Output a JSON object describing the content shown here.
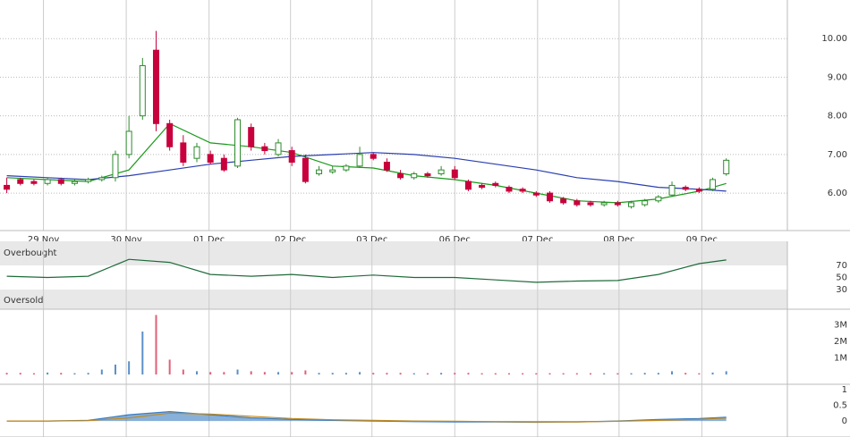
{
  "chart_data": [
    {
      "type": "candlestick",
      "xlim": [
        -0.5,
        57.5
      ],
      "xticks": [
        {
          "value": 2.7,
          "label": "29 Nov"
        },
        {
          "value": 8.8,
          "label": "30 Nov"
        },
        {
          "value": 14.9,
          "label": "01 Dec"
        },
        {
          "value": 20.9,
          "label": "02 Dec"
        },
        {
          "value": 26.9,
          "label": "03 Dec"
        },
        {
          "value": 33,
          "label": "06 Dec"
        },
        {
          "value": 39.1,
          "label": "07 Dec"
        },
        {
          "value": 45.1,
          "label": "08 Dec"
        },
        {
          "value": 51.2,
          "label": "09 Dec"
        }
      ],
      "ylim": [
        5.03,
        11
      ],
      "yticks": [
        {
          "value": 6,
          "label": "6.00"
        },
        {
          "value": 7,
          "label": "7.00"
        },
        {
          "value": 8,
          "label": "8.00"
        },
        {
          "value": 9,
          "label": "9.00"
        },
        {
          "value": 10,
          "label": "10.00"
        }
      ],
      "up_color": "#2e8b2e",
      "down_color": "#c8003c",
      "open": [
        6.2,
        6.35,
        6.3,
        6.25,
        6.35,
        6.25,
        6.3,
        6.35,
        6.4,
        7.0,
        8.0,
        9.7,
        7.8,
        7.3,
        6.9,
        7.0,
        6.9,
        6.7,
        7.7,
        7.2,
        7.0,
        7.1,
        6.9,
        6.5,
        6.55,
        6.6,
        6.7,
        7.0,
        6.8,
        6.5,
        6.4,
        6.5,
        6.5,
        6.6,
        6.3,
        6.2,
        6.25,
        6.15,
        6.1,
        6.0,
        6.0,
        5.85,
        5.8,
        5.75,
        5.7,
        5.75,
        5.65,
        5.7,
        5.8,
        5.95,
        6.15,
        6.1,
        6.1,
        6.5
      ],
      "high": [
        6.4,
        6.4,
        6.35,
        6.4,
        6.4,
        6.35,
        6.4,
        6.45,
        7.1,
        8.0,
        9.5,
        10.2,
        7.9,
        7.5,
        7.3,
        7.1,
        7.0,
        7.95,
        7.8,
        7.3,
        7.4,
        7.2,
        7.0,
        6.7,
        6.7,
        6.75,
        7.2,
        7.05,
        6.9,
        6.6,
        6.55,
        6.55,
        6.7,
        6.7,
        6.35,
        6.25,
        6.3,
        6.2,
        6.15,
        6.05,
        6.05,
        5.9,
        5.85,
        5.8,
        5.8,
        5.8,
        5.8,
        5.85,
        5.95,
        6.3,
        6.2,
        6.15,
        6.4,
        6.9
      ],
      "low": [
        6.0,
        6.2,
        6.2,
        6.2,
        6.2,
        6.2,
        6.25,
        6.3,
        6.3,
        6.9,
        7.9,
        7.6,
        7.1,
        6.7,
        6.8,
        6.75,
        6.55,
        6.65,
        7.1,
        7.0,
        6.95,
        6.7,
        6.25,
        6.45,
        6.5,
        6.55,
        6.65,
        6.85,
        6.55,
        6.35,
        6.35,
        6.4,
        6.45,
        6.35,
        6.05,
        6.1,
        6.15,
        6.0,
        6.0,
        5.9,
        5.75,
        5.7,
        5.65,
        5.65,
        5.65,
        5.65,
        5.6,
        5.65,
        5.75,
        5.9,
        6.05,
        6.0,
        6.05,
        6.45
      ],
      "close": [
        6.1,
        6.25,
        6.25,
        6.35,
        6.25,
        6.3,
        6.35,
        6.4,
        7.0,
        7.6,
        9.3,
        7.8,
        7.2,
        6.8,
        7.2,
        6.8,
        6.6,
        7.9,
        7.2,
        7.1,
        7.3,
        6.8,
        6.3,
        6.6,
        6.6,
        6.7,
        7.0,
        6.9,
        6.6,
        6.4,
        6.5,
        6.45,
        6.6,
        6.4,
        6.1,
        6.15,
        6.2,
        6.05,
        6.05,
        5.95,
        5.8,
        5.75,
        5.7,
        5.7,
        5.75,
        5.7,
        5.75,
        5.8,
        5.9,
        6.2,
        6.1,
        6.05,
        6.35,
        6.85
      ],
      "series": [
        {
          "color": "#1a9a1a",
          "x": [
            0,
            3,
            6,
            9,
            12,
            15,
            18,
            21,
            24,
            27,
            30,
            33,
            36,
            39,
            42,
            45,
            48,
            51,
            53
          ],
          "values": [
            6.4,
            6.35,
            6.3,
            6.6,
            7.8,
            7.3,
            7.2,
            7.05,
            6.7,
            6.65,
            6.45,
            6.35,
            6.2,
            6.0,
            5.8,
            5.75,
            5.85,
            6.05,
            6.25
          ]
        },
        {
          "color": "#2a3fb0",
          "x": [
            0,
            3,
            6,
            9,
            12,
            15,
            18,
            21,
            24,
            27,
            30,
            33,
            36,
            39,
            42,
            45,
            48,
            51,
            53
          ],
          "values": [
            6.45,
            6.4,
            6.35,
            6.45,
            6.6,
            6.75,
            6.85,
            6.95,
            7.0,
            7.05,
            7.0,
            6.9,
            6.75,
            6.6,
            6.4,
            6.3,
            6.15,
            6.1,
            6.05
          ]
        }
      ]
    },
    {
      "type": "line",
      "overbought_label": "Overbought",
      "oversold_label": "Oversold",
      "xlim": [
        -0.5,
        57.5
      ],
      "ylim": [
        -2.6,
        110
      ],
      "yticks": [
        30,
        50,
        70
      ],
      "series": [
        {
          "color": "#1f6b3a",
          "x": [
            0,
            3,
            6,
            9,
            12,
            15,
            18,
            21,
            24,
            27,
            30,
            33,
            36,
            39,
            42,
            45,
            48,
            51,
            53
          ],
          "values": [
            52,
            50,
            52,
            80,
            75,
            55,
            52,
            55,
            50,
            54,
            50,
            50,
            46,
            42,
            44,
            45,
            55,
            73,
            79
          ]
        }
      ]
    },
    {
      "type": "bar",
      "xlim": [
        -0.5,
        57.5
      ],
      "ylim": [
        -590000,
        3950000
      ],
      "yticks": [
        {
          "value": 1000000,
          "label": "1M"
        },
        {
          "value": 2000000,
          "label": "2M"
        },
        {
          "value": 3000000,
          "label": "3M"
        }
      ],
      "up_color": "#5b8fc7",
      "down_color": "#e0607a",
      "values": [
        100000,
        100000,
        80000,
        120000,
        100000,
        80000,
        100000,
        300000,
        600000,
        800000,
        2600000,
        3600000,
        900000,
        300000,
        200000,
        150000,
        150000,
        300000,
        200000,
        150000,
        150000,
        150000,
        250000,
        100000,
        100000,
        100000,
        150000,
        100000,
        100000,
        100000,
        80000,
        80000,
        100000,
        100000,
        100000,
        80000,
        80000,
        80000,
        80000,
        80000,
        80000,
        80000,
        80000,
        80000,
        80000,
        80000,
        80000,
        100000,
        100000,
        200000,
        100000,
        80000,
        120000,
        200000
      ]
    },
    {
      "type": "line",
      "xlim": [
        -0.5,
        57.5
      ],
      "ylim": [
        -0.51,
        1.17
      ],
      "yticks": [
        0,
        0.5,
        1
      ],
      "series": [
        {
          "color": "#3a7cc0",
          "x": [
            0,
            3,
            6,
            9,
            12,
            15,
            18,
            21,
            24,
            27,
            30,
            33,
            36,
            39,
            42,
            45,
            48,
            51,
            53
          ],
          "values": [
            0,
            0,
            0.02,
            0.2,
            0.3,
            0.2,
            0.1,
            0.05,
            0.02,
            0,
            -0.02,
            -0.03,
            -0.03,
            -0.04,
            -0.03,
            0,
            0.05,
            0.08,
            0.12
          ]
        },
        {
          "color": "#c08a20",
          "x": [
            0,
            3,
            6,
            9,
            12,
            15,
            18,
            21,
            24,
            27,
            30,
            33,
            36,
            39,
            42,
            45,
            48,
            51,
            53
          ],
          "values": [
            0,
            0,
            0.01,
            0.1,
            0.25,
            0.22,
            0.15,
            0.08,
            0.04,
            0.02,
            0,
            -0.01,
            -0.02,
            -0.03,
            -0.03,
            -0.01,
            0.02,
            0.05,
            0.1
          ]
        }
      ]
    }
  ]
}
